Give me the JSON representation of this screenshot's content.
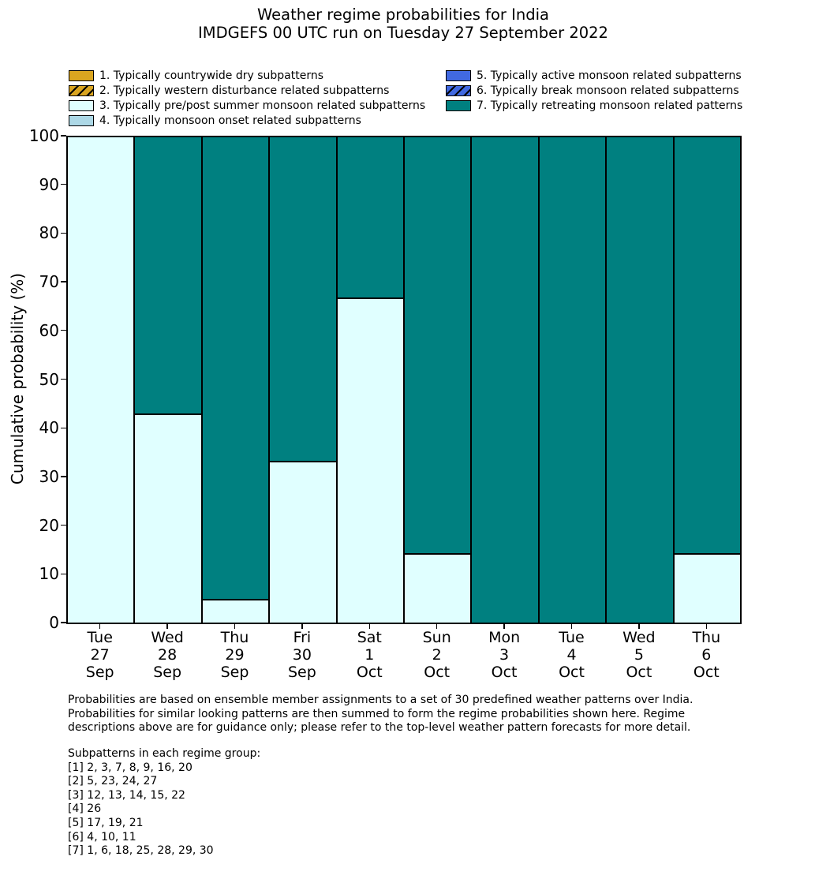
{
  "title": {
    "line1": "Weather regime probabilities for India",
    "line2": "IMDGEFS 00 UTC run on Tuesday 27 September 2022"
  },
  "legend": {
    "columns": [
      {
        "items": [
          {
            "label": "1. Typically countrywide dry subpatterns",
            "color": "#DAA520",
            "hatch": false
          },
          {
            "label": "2. Typically western disturbance related subpatterns",
            "color": "#DAA520",
            "hatch": true
          },
          {
            "label": "3. Typically pre/post summer monsoon related subpatterns",
            "color": "#E0FFFF",
            "hatch": false
          },
          {
            "label": "4. Typically monsoon onset related subpatterns",
            "color": "#ADD8E6",
            "hatch": false
          }
        ]
      },
      {
        "items": [
          {
            "label": "5. Typically active monsoon related subpatterns",
            "color": "#4169E1",
            "hatch": false
          },
          {
            "label": "6. Typically break monsoon related subpatterns",
            "color": "#4169E1",
            "hatch": true
          },
          {
            "label": "7. Typically retreating monsoon related patterns",
            "color": "#008080",
            "hatch": false
          }
        ]
      }
    ]
  },
  "chart_data": {
    "type": "bar",
    "stacked": true,
    "title": "Weather regime probabilities for India — IMDGEFS 00 UTC run on Tuesday 27 September 2022",
    "ylabel": "Cumulative probability (%)",
    "ylim": [
      0,
      100
    ],
    "yticks": [
      0,
      10,
      20,
      30,
      40,
      50,
      60,
      70,
      80,
      90,
      100
    ],
    "grid": false,
    "legend_position": "above-plot, two columns",
    "bar_edge_color": "#000000",
    "categories": [
      [
        "Tue",
        "27",
        "Sep"
      ],
      [
        "Wed",
        "28",
        "Sep"
      ],
      [
        "Thu",
        "29",
        "Sep"
      ],
      [
        "Fri",
        "30",
        "Sep"
      ],
      [
        "Sat",
        "1",
        "Oct"
      ],
      [
        "Sun",
        "2",
        "Oct"
      ],
      [
        "Mon",
        "3",
        "Oct"
      ],
      [
        "Tue",
        "4",
        "Oct"
      ],
      [
        "Wed",
        "5",
        "Oct"
      ],
      [
        "Thu",
        "6",
        "Oct"
      ]
    ],
    "series": [
      {
        "name": "3. Typically pre/post summer monsoon related subpatterns",
        "color": "#E0FFFF",
        "values": [
          100,
          42.9,
          4.8,
          33.3,
          66.7,
          14.3,
          0,
          0,
          0,
          14.3
        ]
      },
      {
        "name": "7. Typically retreating monsoon related patterns",
        "color": "#008080",
        "values": [
          0,
          57.1,
          95.2,
          66.7,
          33.3,
          85.7,
          100,
          100,
          100,
          85.7
        ]
      }
    ]
  },
  "footer": {
    "para": [
      "Probabilities are based on ensemble member assignments to a set of 30 predefined weather patterns over India.",
      "Probabilities for similar looking patterns are then summed to form the regime probabilities shown here. Regime",
      "descriptions above are for guidance only; please refer to the top-level weather pattern forecasts for more detail."
    ],
    "subpatterns_header": "Subpatterns in each regime group:",
    "subpatterns": [
      "[1] 2, 3, 7, 8, 9, 16, 20",
      "[2] 5, 23, 24, 27",
      "[3] 12, 13, 14, 15, 22",
      "[4] 26",
      "[5] 17, 19, 21",
      "[6] 4, 10, 11",
      "[7] 1, 6, 18, 25, 28, 29, 30"
    ]
  }
}
